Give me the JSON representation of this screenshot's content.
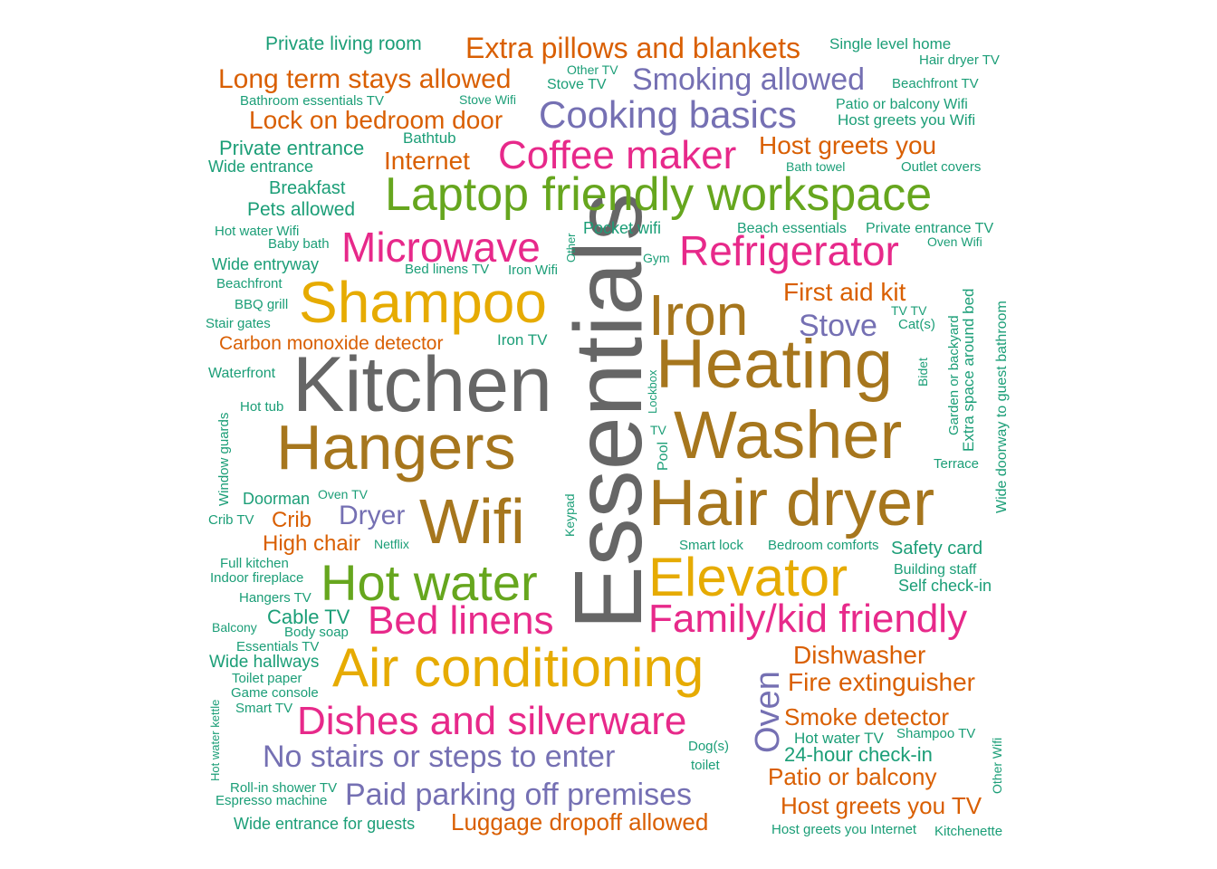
{
  "chart_data": {
    "type": "wordcloud",
    "title": "",
    "palette": {
      "grey": "#666666",
      "gold": "#E6AB02",
      "brown": "#A6761D",
      "green": "#66A61E",
      "pink": "#E7298A",
      "purple": "#7570B3",
      "orange": "#D95F02",
      "teal": "#1B9E77"
    },
    "words": [
      {
        "text": "Essentials",
        "color": "grey"
      },
      {
        "text": "Kitchen",
        "color": "grey"
      },
      {
        "text": "Heating",
        "color": "brown"
      },
      {
        "text": "Hangers",
        "color": "brown"
      },
      {
        "text": "Washer",
        "color": "brown"
      },
      {
        "text": "Hair dryer",
        "color": "brown"
      },
      {
        "text": "Wifi",
        "color": "brown"
      },
      {
        "text": "Iron",
        "color": "brown"
      },
      {
        "text": "Shampoo",
        "color": "gold"
      },
      {
        "text": "Elevator",
        "color": "gold"
      },
      {
        "text": "Air conditioning",
        "color": "gold"
      },
      {
        "text": "Laptop friendly workspace",
        "color": "green"
      },
      {
        "text": "Hot water",
        "color": "green"
      },
      {
        "text": "Refrigerator",
        "color": "pink"
      },
      {
        "text": "Microwave",
        "color": "pink"
      },
      {
        "text": "Coffee maker",
        "color": "pink"
      },
      {
        "text": "Bed linens",
        "color": "pink"
      },
      {
        "text": "Family/kid friendly",
        "color": "pink"
      },
      {
        "text": "Dishes and silverware",
        "color": "pink"
      },
      {
        "text": "Cooking basics",
        "color": "purple"
      },
      {
        "text": "Smoking allowed",
        "color": "purple"
      },
      {
        "text": "No stairs or steps to enter",
        "color": "purple"
      },
      {
        "text": "Paid parking off premises",
        "color": "purple"
      },
      {
        "text": "Oven",
        "color": "purple"
      },
      {
        "text": "Stove",
        "color": "purple"
      },
      {
        "text": "Dryer",
        "color": "purple"
      },
      {
        "text": "Extra pillows and blankets",
        "color": "orange"
      },
      {
        "text": "Long term stays allowed",
        "color": "orange"
      },
      {
        "text": "Lock on bedroom door",
        "color": "orange"
      },
      {
        "text": "Host greets you",
        "color": "orange"
      },
      {
        "text": "Internet",
        "color": "orange"
      },
      {
        "text": "First aid kit",
        "color": "orange"
      },
      {
        "text": "Carbon monoxide detector",
        "color": "orange"
      },
      {
        "text": "Crib",
        "color": "orange"
      },
      {
        "text": "High chair",
        "color": "orange"
      },
      {
        "text": "Dishwasher",
        "color": "orange"
      },
      {
        "text": "Fire extinguisher",
        "color": "orange"
      },
      {
        "text": "Smoke detector",
        "color": "orange"
      },
      {
        "text": "Patio or balcony",
        "color": "orange"
      },
      {
        "text": "Host greets you TV",
        "color": "orange"
      },
      {
        "text": "Luggage dropoff allowed",
        "color": "orange"
      },
      {
        "text": "Private living room",
        "color": "teal"
      },
      {
        "text": "Single level home",
        "color": "teal"
      },
      {
        "text": "Hair dryer TV",
        "color": "teal"
      },
      {
        "text": "Other TV",
        "color": "teal"
      },
      {
        "text": "Stove TV",
        "color": "teal"
      },
      {
        "text": "Beachfront TV",
        "color": "teal"
      },
      {
        "text": "Bathroom essentials TV",
        "color": "teal"
      },
      {
        "text": "Stove Wifi",
        "color": "teal"
      },
      {
        "text": "Patio or balcony Wifi",
        "color": "teal"
      },
      {
        "text": "Host greets you Wifi",
        "color": "teal"
      },
      {
        "text": "Bathtub",
        "color": "teal"
      },
      {
        "text": "Private entrance",
        "color": "teal"
      },
      {
        "text": "Wide entrance",
        "color": "teal"
      },
      {
        "text": "Bath towel",
        "color": "teal"
      },
      {
        "text": "Outlet covers",
        "color": "teal"
      },
      {
        "text": "Breakfast",
        "color": "teal"
      },
      {
        "text": "Pets allowed",
        "color": "teal"
      },
      {
        "text": "Hot water Wifi",
        "color": "teal"
      },
      {
        "text": "Baby bath",
        "color": "teal"
      },
      {
        "text": "Other",
        "color": "teal"
      },
      {
        "text": "Pocket wifi",
        "color": "teal"
      },
      {
        "text": "Beach essentials",
        "color": "teal"
      },
      {
        "text": "Private entrance TV",
        "color": "teal"
      },
      {
        "text": "Oven Wifi",
        "color": "teal"
      },
      {
        "text": "Wide entryway",
        "color": "teal"
      },
      {
        "text": "Bed linens TV",
        "color": "teal"
      },
      {
        "text": "Iron Wifi",
        "color": "teal"
      },
      {
        "text": "Gym",
        "color": "teal"
      },
      {
        "text": "Beachfront",
        "color": "teal"
      },
      {
        "text": "BBQ grill",
        "color": "teal"
      },
      {
        "text": "Stair gates",
        "color": "teal"
      },
      {
        "text": "Iron TV",
        "color": "teal"
      },
      {
        "text": "TV TV",
        "color": "teal"
      },
      {
        "text": "Cat(s)",
        "color": "teal"
      },
      {
        "text": "Garden or backyard",
        "color": "teal"
      },
      {
        "text": "Extra space around bed",
        "color": "teal"
      },
      {
        "text": "Wide doorway to guest bathroom",
        "color": "teal"
      },
      {
        "text": "Waterfront",
        "color": "teal"
      },
      {
        "text": "Lockbox",
        "color": "teal"
      },
      {
        "text": "Bidet",
        "color": "teal"
      },
      {
        "text": "Hot tub",
        "color": "teal"
      },
      {
        "text": "Window guards",
        "color": "teal"
      },
      {
        "text": "TV",
        "color": "teal"
      },
      {
        "text": "Pool",
        "color": "teal"
      },
      {
        "text": "Terrace",
        "color": "teal"
      },
      {
        "text": "Doorman",
        "color": "teal"
      },
      {
        "text": "Oven TV",
        "color": "teal"
      },
      {
        "text": "Keypad",
        "color": "teal"
      },
      {
        "text": "Crib TV",
        "color": "teal"
      },
      {
        "text": "Netflix",
        "color": "teal"
      },
      {
        "text": "Smart lock",
        "color": "teal"
      },
      {
        "text": "Bedroom comforts",
        "color": "teal"
      },
      {
        "text": "Safety card",
        "color": "teal"
      },
      {
        "text": "Full kitchen",
        "color": "teal"
      },
      {
        "text": "Indoor fireplace",
        "color": "teal"
      },
      {
        "text": "Building staff",
        "color": "teal"
      },
      {
        "text": "Self check-in",
        "color": "teal"
      },
      {
        "text": "Hangers TV",
        "color": "teal"
      },
      {
        "text": "Cable TV",
        "color": "teal"
      },
      {
        "text": "Balcony",
        "color": "teal"
      },
      {
        "text": "Body soap",
        "color": "teal"
      },
      {
        "text": "Essentials TV",
        "color": "teal"
      },
      {
        "text": "Wide hallways",
        "color": "teal"
      },
      {
        "text": "Toilet paper",
        "color": "teal"
      },
      {
        "text": "Game console",
        "color": "teal"
      },
      {
        "text": "Hot water kettle",
        "color": "teal"
      },
      {
        "text": "Smart TV",
        "color": "teal"
      },
      {
        "text": "Hot water TV",
        "color": "teal"
      },
      {
        "text": "Shampoo TV",
        "color": "teal"
      },
      {
        "text": "Dog(s)",
        "color": "teal"
      },
      {
        "text": "toilet",
        "color": "teal"
      },
      {
        "text": "24-hour check-in",
        "color": "teal"
      },
      {
        "text": "Other Wifi",
        "color": "teal"
      },
      {
        "text": "Roll-in shower TV",
        "color": "teal"
      },
      {
        "text": "Espresso machine",
        "color": "teal"
      },
      {
        "text": "Wide entrance for guests",
        "color": "teal"
      },
      {
        "text": "Host greets you Internet",
        "color": "teal"
      },
      {
        "text": "Kitchenette",
        "color": "teal"
      }
    ]
  }
}
